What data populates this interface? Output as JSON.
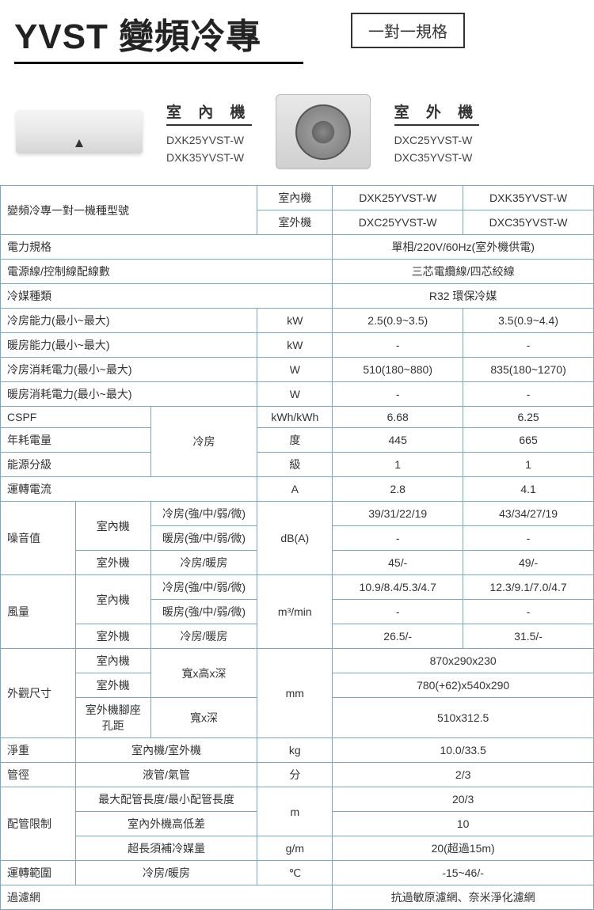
{
  "title": "YVST 變頻冷專",
  "spec_label": "一對一規格",
  "indoor": {
    "title": "室 內 機",
    "models": [
      "DXK25YVST-W",
      "DXK35YVST-W"
    ]
  },
  "outdoor": {
    "title": "室 外 機",
    "models": [
      "DXC25YVST-W",
      "DXC35YVST-W"
    ]
  },
  "h": {
    "modelno": "變頻冷專一對一機種型號",
    "indoor": "室內機",
    "outdoor": "室外機",
    "m1i": "DXK25YVST-W",
    "m2i": "DXK35YVST-W",
    "m1o": "DXC25YVST-W",
    "m2o": "DXC35YVST-W"
  },
  "rows": {
    "power": {
      "label": "電力規格",
      "val": "單相/220V/60Hz(室外機供電)"
    },
    "wiring": {
      "label": "電源線/控制線配線數",
      "val": "三芯電纜線/四芯絞線"
    },
    "refrigerant": {
      "label": "冷媒種類",
      "val": "R32 環保冷媒"
    },
    "cool_cap": {
      "label": "冷房能力(最小~最大)",
      "unit": "kW",
      "v1": "2.5(0.9~3.5)",
      "v2": "3.5(0.9~4.4)"
    },
    "heat_cap": {
      "label": "暖房能力(最小~最大)",
      "unit": "kW",
      "v1": "-",
      "v2": "-"
    },
    "cool_pw": {
      "label": "冷房消耗電力(最小~最大)",
      "unit": "W",
      "v1": "510(180~880)",
      "v2": "835(180~1270)"
    },
    "heat_pw": {
      "label": "暖房消耗電力(最小~最大)",
      "unit": "W",
      "v1": "-",
      "v2": "-"
    },
    "cspf": {
      "label": "CSPF",
      "group": "冷房",
      "unit": "kWh/kWh",
      "v1": "6.68",
      "v2": "6.25"
    },
    "annual": {
      "label": "年耗電量",
      "unit": "度",
      "v1": "445",
      "v2": "665"
    },
    "grade": {
      "label": "能源分級",
      "unit": "級",
      "v1": "1",
      "v2": "1"
    },
    "current": {
      "label": "運轉電流",
      "unit": "A",
      "v1": "2.8",
      "v2": "4.1"
    },
    "noise": {
      "label": "噪音值",
      "indoor": "室內機",
      "outdoor": "室外機",
      "cool": "冷房(強/中/弱/微)",
      "heat": "暖房(強/中/弱/微)",
      "ch": "冷房/暖房",
      "unit": "dB(A)",
      "r1v1": "39/31/22/19",
      "r1v2": "43/34/27/19",
      "r2v1": "-",
      "r2v2": "-",
      "r3v1": "45/-",
      "r3v2": "49/-"
    },
    "airflow": {
      "label": "風量",
      "unit": "m³/min",
      "r1v1": "10.9/8.4/5.3/4.7",
      "r1v2": "12.3/9.1/7.0/4.7",
      "r2v1": "-",
      "r2v2": "-",
      "r3v1": "26.5/-",
      "r3v2": "31.5/-"
    },
    "dim": {
      "label": "外觀尺寸",
      "indoor": "室內機",
      "outdoor": "室外機",
      "foot": "室外機腳座孔距",
      "whd": "寬x高x深",
      "wd": "寬x深",
      "unit": "mm",
      "v1": "870x290x230",
      "v2": "780(+62)x540x290",
      "v3": "510x312.5"
    },
    "weight": {
      "label": "淨重",
      "sub": "室內機/室外機",
      "unit": "kg",
      "val": "10.0/33.5"
    },
    "pipe": {
      "label": "管徑",
      "sub": "液管/氣管",
      "unit": "分",
      "val": "2/3"
    },
    "piping": {
      "label": "配管限制",
      "r1": "最大配管長度/最小配管長度",
      "r2": "室內外機高低差",
      "r3": "超長須補冷媒量",
      "u1": "m",
      "u3": "g/m",
      "v1": "20/3",
      "v2": "10",
      "v3": "20(超過15m)"
    },
    "range": {
      "label": "運轉範圍",
      "sub": "冷房/暖房",
      "unit": "℃",
      "val": "-15~46/-"
    },
    "filter": {
      "label": "過濾網",
      "val": "抗過敏原濾網、奈米淨化濾網"
    }
  }
}
